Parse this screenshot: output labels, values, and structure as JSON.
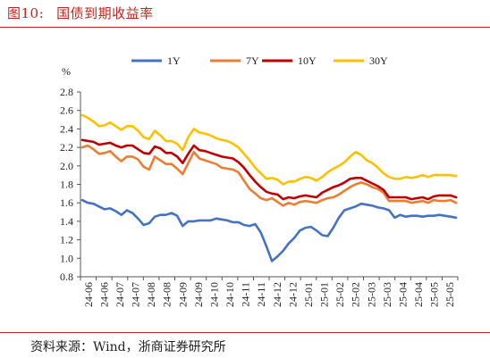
{
  "figure": {
    "label": "图10:",
    "title": "国债到期收益率",
    "source": "资料来源：Wind，浙商证券研究所"
  },
  "colors": {
    "accent": "#c0261f",
    "series_1y": "#4472c4",
    "series_7y": "#ed7d31",
    "series_10y": "#c00000",
    "series_30y": "#ffc000"
  },
  "chart_data": {
    "type": "line",
    "title": "",
    "ylabel": "%",
    "xlabel": "",
    "ylim": [
      0.8,
      2.8
    ],
    "yticks": [
      0.8,
      1.0,
      1.2,
      1.4,
      1.6,
      1.8,
      2.0,
      2.2,
      2.4,
      2.6,
      2.8
    ],
    "ytick_labels": [
      "0.8",
      "1.0",
      "1.2",
      "1.4",
      "1.6",
      "1.8",
      "2.0",
      "2.2",
      "2.4",
      "2.6",
      "2.8"
    ],
    "xtick_labels": [
      "24-06",
      "24-06",
      "24-07",
      "24-07",
      "24-08",
      "24-08",
      "24-09",
      "24-09",
      "24-10",
      "24-10",
      "24-11",
      "24-11",
      "24-12",
      "24-12",
      "25-01",
      "25-01",
      "25-02",
      "25-02",
      "25-03",
      "25-03",
      "25-04",
      "25-04",
      "25-05",
      "25-05"
    ],
    "grid": false,
    "legend_position": "top",
    "series": [
      {
        "name": "1Y",
        "color": "#4472c4",
        "values": [
          1.63,
          1.6,
          1.59,
          1.56,
          1.53,
          1.54,
          1.51,
          1.47,
          1.52,
          1.49,
          1.43,
          1.36,
          1.38,
          1.45,
          1.47,
          1.47,
          1.49,
          1.46,
          1.35,
          1.4,
          1.4,
          1.41,
          1.41,
          1.41,
          1.43,
          1.42,
          1.41,
          1.39,
          1.39,
          1.36,
          1.35,
          1.37,
          1.28,
          1.13,
          0.97,
          1.02,
          1.08,
          1.16,
          1.22,
          1.3,
          1.33,
          1.34,
          1.3,
          1.25,
          1.24,
          1.33,
          1.44,
          1.52,
          1.54,
          1.56,
          1.59,
          1.58,
          1.57,
          1.55,
          1.54,
          1.52,
          1.44,
          1.47,
          1.45,
          1.46,
          1.46,
          1.45,
          1.46,
          1.46,
          1.47,
          1.46,
          1.45,
          1.44
        ]
      },
      {
        "name": "7Y",
        "color": "#ed7d31",
        "values": [
          2.2,
          2.22,
          2.18,
          2.13,
          2.14,
          2.16,
          2.1,
          2.05,
          2.1,
          2.1,
          2.07,
          1.99,
          1.96,
          2.1,
          2.06,
          2.02,
          2.02,
          1.97,
          1.91,
          2.03,
          2.15,
          2.08,
          2.06,
          2.04,
          2.02,
          1.98,
          1.97,
          1.96,
          1.93,
          1.84,
          1.75,
          1.7,
          1.65,
          1.63,
          1.65,
          1.61,
          1.57,
          1.6,
          1.58,
          1.61,
          1.62,
          1.61,
          1.6,
          1.63,
          1.65,
          1.66,
          1.69,
          1.73,
          1.77,
          1.8,
          1.82,
          1.8,
          1.77,
          1.75,
          1.71,
          1.62,
          1.62,
          1.62,
          1.62,
          1.6,
          1.61,
          1.62,
          1.6,
          1.63,
          1.62,
          1.62,
          1.63,
          1.6
        ]
      },
      {
        "name": "10Y",
        "color": "#c00000",
        "values": [
          2.28,
          2.27,
          2.26,
          2.23,
          2.24,
          2.25,
          2.22,
          2.2,
          2.22,
          2.22,
          2.18,
          2.14,
          2.13,
          2.21,
          2.19,
          2.14,
          2.14,
          2.1,
          2.03,
          2.13,
          2.22,
          2.17,
          2.16,
          2.14,
          2.12,
          2.1,
          2.09,
          2.08,
          2.04,
          1.98,
          1.9,
          1.83,
          1.77,
          1.72,
          1.7,
          1.69,
          1.64,
          1.66,
          1.65,
          1.67,
          1.68,
          1.67,
          1.66,
          1.71,
          1.74,
          1.77,
          1.79,
          1.82,
          1.86,
          1.87,
          1.87,
          1.84,
          1.81,
          1.78,
          1.74,
          1.66,
          1.66,
          1.66,
          1.66,
          1.64,
          1.65,
          1.66,
          1.64,
          1.67,
          1.68,
          1.68,
          1.68,
          1.66
        ]
      },
      {
        "name": "30Y",
        "color": "#ffc000",
        "values": [
          2.55,
          2.52,
          2.48,
          2.43,
          2.44,
          2.47,
          2.43,
          2.39,
          2.43,
          2.43,
          2.38,
          2.31,
          2.29,
          2.38,
          2.33,
          2.27,
          2.27,
          2.24,
          2.17,
          2.31,
          2.4,
          2.36,
          2.35,
          2.33,
          2.3,
          2.28,
          2.27,
          2.24,
          2.2,
          2.13,
          2.06,
          1.98,
          1.92,
          1.86,
          1.87,
          1.85,
          1.8,
          1.83,
          1.83,
          1.86,
          1.88,
          1.87,
          1.84,
          1.88,
          1.93,
          1.97,
          2.0,
          2.04,
          2.1,
          2.15,
          2.12,
          2.06,
          2.03,
          1.98,
          1.92,
          1.88,
          1.86,
          1.86,
          1.88,
          1.87,
          1.88,
          1.9,
          1.88,
          1.9,
          1.9,
          1.9,
          1.9,
          1.89
        ]
      }
    ]
  }
}
